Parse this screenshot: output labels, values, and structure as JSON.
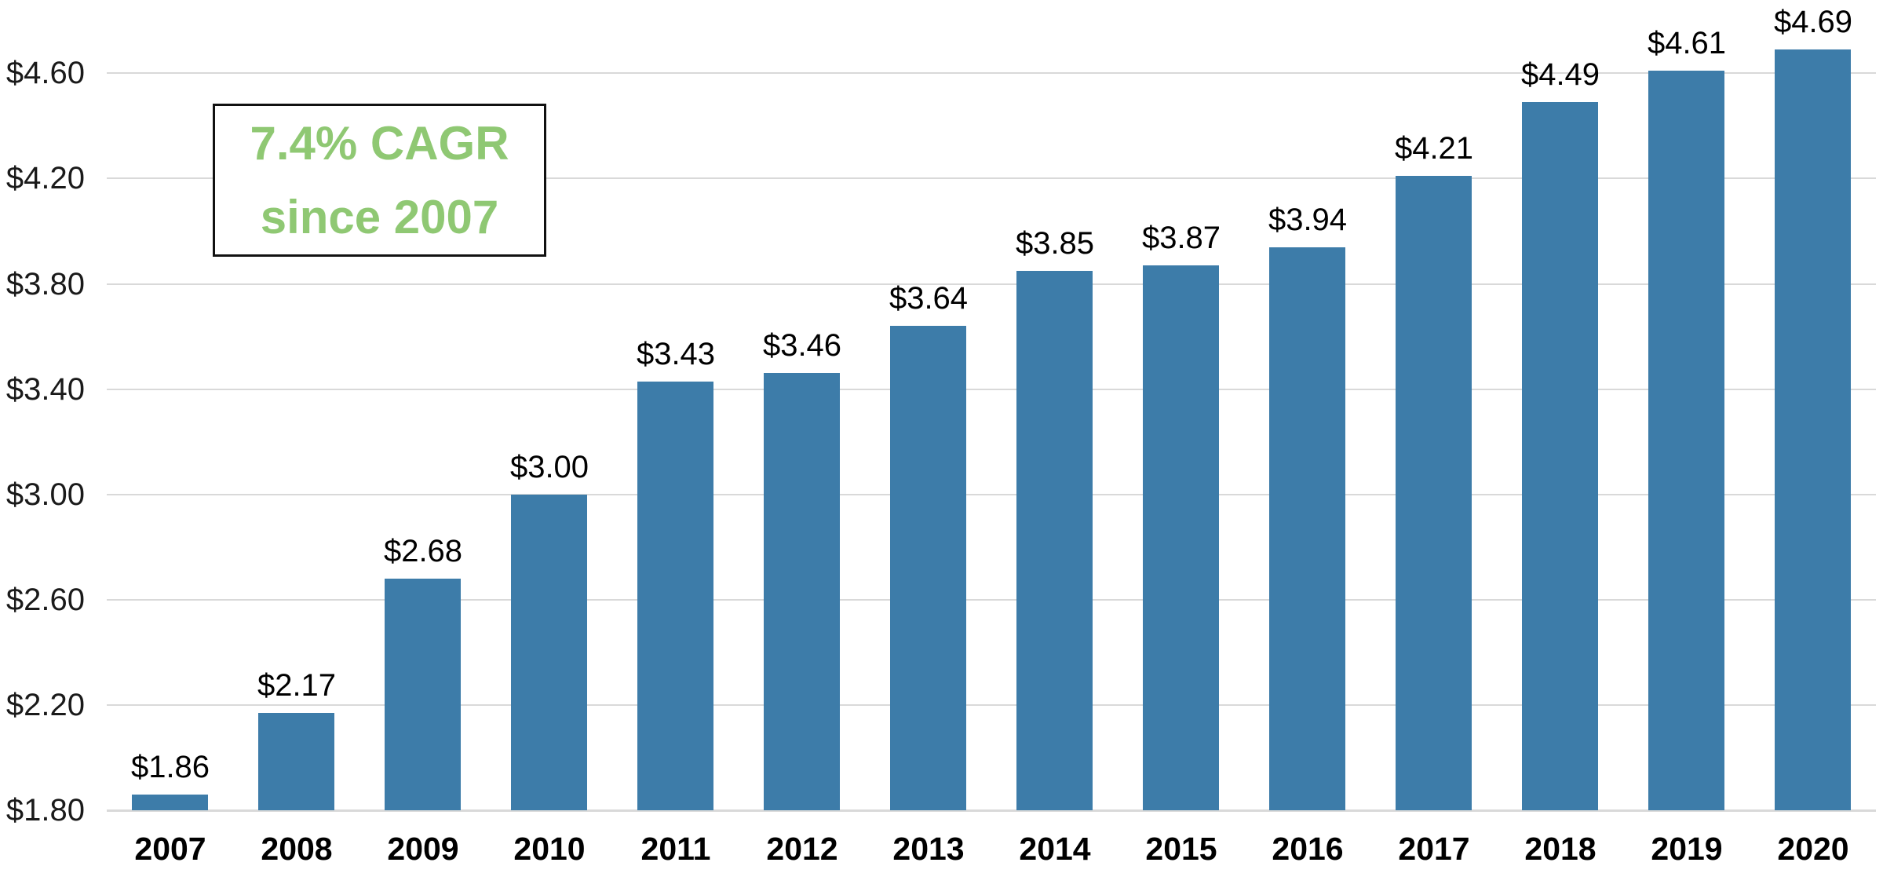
{
  "chart_data": {
    "type": "bar",
    "title": "",
    "xlabel": "",
    "ylabel": "",
    "categories": [
      "2007",
      "2008",
      "2009",
      "2010",
      "2011",
      "2012",
      "2013",
      "2014",
      "2015",
      "2016",
      "2017",
      "2018",
      "2019",
      "2020"
    ],
    "values": [
      1.86,
      2.17,
      2.68,
      3.0,
      3.43,
      3.46,
      3.64,
      3.85,
      3.87,
      3.94,
      4.21,
      4.49,
      4.61,
      4.69
    ],
    "bar_labels": [
      "$1.86",
      "$2.17",
      "$2.68",
      "$3.00",
      "$3.43",
      "$3.46",
      "$3.64",
      "$3.85",
      "$3.87",
      "$3.94",
      "$4.21",
      "$4.49",
      "$4.61",
      "$4.69"
    ],
    "y_ticks": [
      "$4.60",
      "$4.20",
      "$3.80",
      "$3.40",
      "$3.00",
      "$2.60",
      "$2.20",
      "$1.80"
    ],
    "y_tick_values": [
      4.6,
      4.2,
      3.8,
      3.4,
      3.0,
      2.6,
      2.2,
      1.8
    ],
    "ylim": [
      1.8,
      4.8
    ],
    "y_tick_step": 0.4,
    "grid": true,
    "legend": false,
    "annotation": {
      "line1": "7.4% CAGR",
      "line2": "since 2007"
    },
    "colors": {
      "bar": "#3D7CA9",
      "gridline": "#D9D9D9",
      "annotation_text": "#8FC873",
      "annotation_border": "#111111",
      "label_text": "#000000"
    }
  }
}
